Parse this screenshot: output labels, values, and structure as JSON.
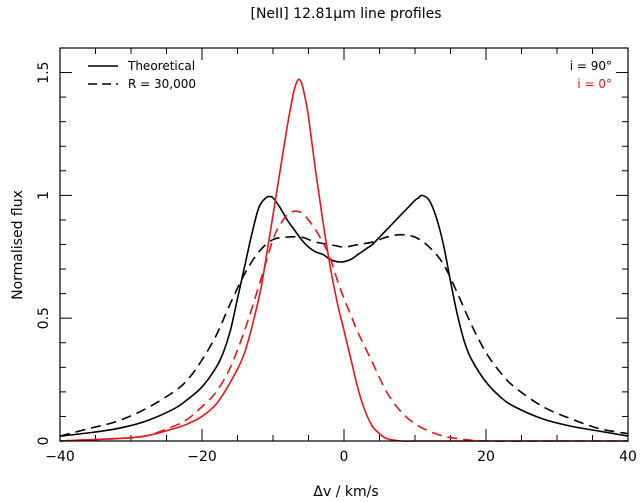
{
  "chart_data": {
    "type": "line",
    "title": "[NeII] 12.81μm line profiles",
    "xlabel": "Δv / km/s",
    "ylabel": "Normalised flux",
    "xlim": [
      -40,
      40
    ],
    "ylim": [
      0,
      1.6
    ],
    "xticks": [
      -40,
      -20,
      0,
      20,
      40
    ],
    "xtick_labels": [
      "−40",
      "−20",
      "0",
      "20",
      "40"
    ],
    "yticks": [
      0,
      0.5,
      1,
      1.5
    ],
    "ytick_labels": [
      "0",
      "0.5",
      "1",
      "1.5"
    ],
    "grid": false,
    "legend": {
      "placement": "top-left",
      "entries": [
        {
          "label": "Theoretical",
          "style": "solid"
        },
        {
          "label": "R = 30,000",
          "style": "dashed"
        }
      ]
    },
    "annotations": [
      {
        "text": "i = 90°",
        "color": "#000000"
      },
      {
        "text": "i = 0°",
        "color": "#e8141c"
      }
    ],
    "series": [
      {
        "inclination": "i = 90°",
        "style": "solid",
        "color": "#000000",
        "x": [
          -40,
          -36,
          -32,
          -28,
          -24,
          -22,
          -20,
          -18,
          -17,
          -16,
          -15,
          -14,
          -13,
          -12,
          -11,
          -10.5,
          -10,
          -9,
          -8,
          -7,
          -6,
          -5,
          -4,
          -3,
          -2,
          -1,
          0,
          1,
          2,
          3,
          4,
          5,
          6,
          7,
          8,
          9,
          10,
          10.5,
          11,
          12,
          13,
          14,
          15,
          16,
          17,
          18,
          20,
          22,
          24,
          28,
          32,
          36,
          40
        ],
        "y": [
          0.02,
          0.033,
          0.05,
          0.08,
          0.13,
          0.17,
          0.22,
          0.3,
          0.36,
          0.45,
          0.58,
          0.71,
          0.84,
          0.95,
          0.99,
          0.995,
          0.99,
          0.95,
          0.9,
          0.86,
          0.82,
          0.79,
          0.77,
          0.76,
          0.74,
          0.73,
          0.73,
          0.74,
          0.76,
          0.78,
          0.8,
          0.83,
          0.86,
          0.89,
          0.92,
          0.95,
          0.98,
          0.99,
          1.0,
          0.98,
          0.91,
          0.8,
          0.65,
          0.51,
          0.4,
          0.33,
          0.24,
          0.18,
          0.14,
          0.09,
          0.06,
          0.04,
          0.02
        ]
      },
      {
        "inclination": "i = 90°",
        "style": "dashed",
        "color": "#000000",
        "x": [
          -40,
          -36,
          -32,
          -28,
          -24,
          -22,
          -20,
          -18,
          -16,
          -14,
          -12,
          -10,
          -8,
          -6,
          -4,
          -2,
          0,
          2,
          4,
          6,
          8,
          10,
          12,
          14,
          16,
          18,
          20,
          22,
          24,
          28,
          32,
          36,
          40
        ],
        "y": [
          0.02,
          0.05,
          0.08,
          0.13,
          0.2,
          0.25,
          0.33,
          0.43,
          0.56,
          0.68,
          0.77,
          0.82,
          0.83,
          0.83,
          0.81,
          0.8,
          0.79,
          0.8,
          0.81,
          0.83,
          0.84,
          0.83,
          0.79,
          0.72,
          0.6,
          0.47,
          0.36,
          0.28,
          0.22,
          0.14,
          0.09,
          0.05,
          0.03
        ]
      },
      {
        "inclination": "i = 0°",
        "style": "solid",
        "color": "#e8141c",
        "x": [
          -40,
          -36,
          -32,
          -28,
          -24,
          -22,
          -20,
          -18,
          -16,
          -14,
          -12,
          -11,
          -10,
          -9,
          -8,
          -7.5,
          -7,
          -6.5,
          -6,
          -5.5,
          -5,
          -4,
          -3,
          -2,
          -1,
          0,
          1,
          2,
          3,
          4,
          5,
          6,
          8,
          10,
          15,
          20,
          30,
          40
        ],
        "y": [
          0.0,
          0.005,
          0.01,
          0.02,
          0.05,
          0.07,
          0.1,
          0.15,
          0.24,
          0.36,
          0.58,
          0.74,
          0.92,
          1.1,
          1.28,
          1.36,
          1.43,
          1.47,
          1.46,
          1.4,
          1.32,
          1.1,
          0.9,
          0.72,
          0.57,
          0.45,
          0.33,
          0.21,
          0.12,
          0.06,
          0.03,
          0.01,
          0.0,
          0.0,
          0.0,
          0.0,
          0.0,
          0.0
        ]
      },
      {
        "inclination": "i = 0°",
        "style": "dashed",
        "color": "#e8141c",
        "x": [
          -40,
          -36,
          -32,
          -28,
          -24,
          -22,
          -20,
          -18,
          -16,
          -14,
          -12,
          -10,
          -9,
          -8,
          -7,
          -6,
          -5,
          -4,
          -3,
          -2,
          -1,
          0,
          1,
          2,
          4,
          6,
          8,
          10,
          12,
          14,
          16,
          20,
          30,
          40
        ],
        "y": [
          0.0,
          0.005,
          0.01,
          0.02,
          0.06,
          0.09,
          0.14,
          0.2,
          0.3,
          0.45,
          0.63,
          0.82,
          0.88,
          0.92,
          0.935,
          0.93,
          0.9,
          0.86,
          0.81,
          0.75,
          0.66,
          0.58,
          0.51,
          0.44,
          0.32,
          0.2,
          0.12,
          0.07,
          0.04,
          0.02,
          0.01,
          0.0,
          0.0,
          0.0
        ]
      }
    ]
  }
}
